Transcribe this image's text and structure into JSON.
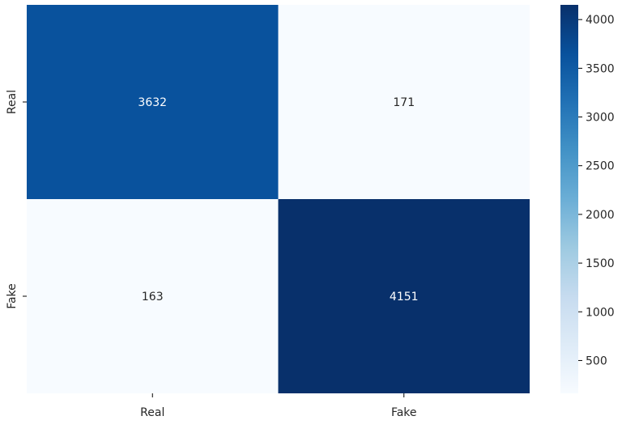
{
  "chart_data": {
    "type": "heatmap",
    "title": "",
    "xlabel": "",
    "ylabel": "",
    "x_labels": [
      "Real",
      "Fake"
    ],
    "y_labels": [
      "Real",
      "Fake"
    ],
    "values": [
      [
        3632,
        171
      ],
      [
        163,
        4151
      ]
    ],
    "colormap": "Blues",
    "colorbar": {
      "min": 163,
      "max": 4151,
      "ticks": [
        500,
        1000,
        1500,
        2000,
        2500,
        3000,
        3500,
        4000
      ]
    },
    "annotations": true,
    "grid": false
  },
  "colors": {
    "cmap_stops": [
      "#f7fbff",
      "#deebf7",
      "#c6dbef",
      "#9ecae1",
      "#6baed6",
      "#4292c6",
      "#2171b5",
      "#08519c",
      "#08306b"
    ],
    "text_dark": "#262626",
    "text_light": "#ffffff",
    "axis": "#000000"
  }
}
